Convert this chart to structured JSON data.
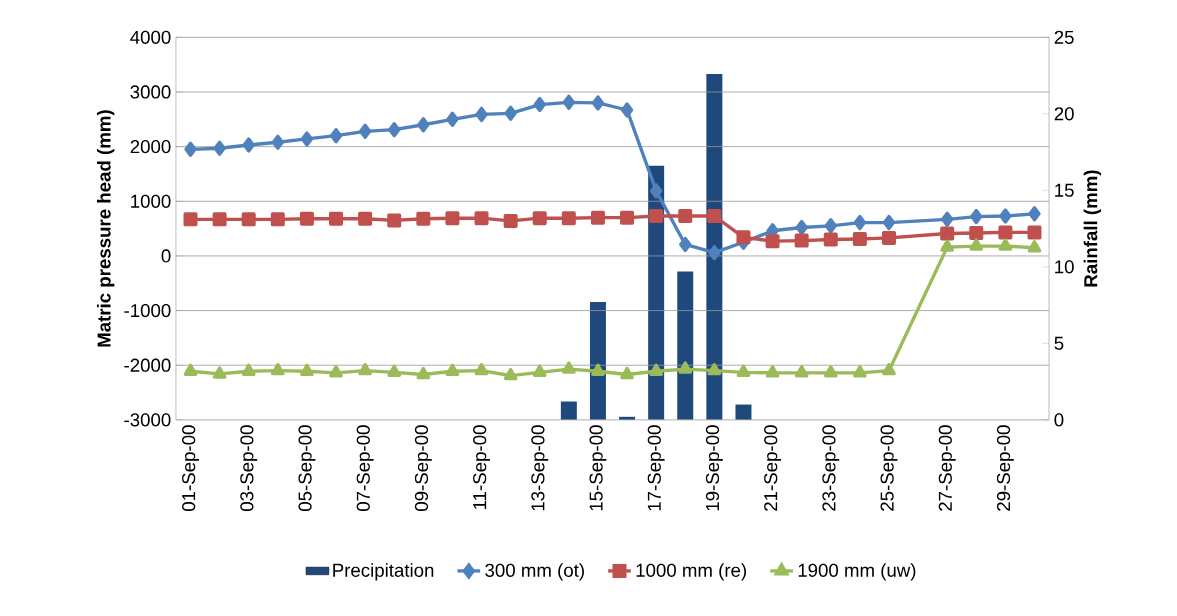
{
  "chart_data": {
    "type": "line",
    "categories": [
      "01-Sep-00",
      null,
      "03-Sep-00",
      null,
      "05-Sep-00",
      null,
      "07-Sep-00",
      null,
      "09-Sep-00",
      null,
      "11-Sep-00",
      null,
      "13-Sep-00",
      null,
      "15-Sep-00",
      null,
      "17-Sep-00",
      null,
      "19-Sep-00",
      null,
      "21-Sep-00",
      null,
      "23-Sep-00",
      null,
      "25-Sep-00",
      null,
      "27-Sep-00",
      null,
      "29-Sep-00",
      null
    ],
    "ylabel": "Matric pressure head (mm)",
    "y2label": "Rainfall (mm)",
    "ylim": [
      -3000,
      4000
    ],
    "yticks": [
      -3000,
      -2000,
      -1000,
      0,
      1000,
      2000,
      3000,
      4000
    ],
    "y2lim": [
      0,
      25
    ],
    "y2ticks": [
      0,
      5,
      10,
      15,
      20,
      25
    ],
    "grid": "y",
    "legend": "bottom",
    "series": [
      {
        "name": "Precipitation",
        "type": "bar",
        "axis": "y2",
        "color": "#1f497d",
        "values": [
          0,
          0,
          0,
          0,
          0,
          0,
          0,
          0,
          0,
          0,
          0,
          0,
          0,
          1.2,
          7.7,
          0.2,
          16.6,
          9.7,
          22.6,
          1.0,
          0,
          0,
          0,
          0,
          0,
          null,
          0,
          0,
          0,
          0
        ]
      },
      {
        "name": "300 mm (ot)",
        "marker": "diamond",
        "color": "#4f81bd",
        "values": [
          1950,
          1970,
          2030,
          2080,
          2140,
          2200,
          2280,
          2310,
          2400,
          2500,
          2590,
          2610,
          2770,
          2810,
          2800,
          2670,
          1190,
          210,
          60,
          250,
          460,
          520,
          550,
          610,
          610,
          null,
          670,
          720,
          730,
          770
        ]
      },
      {
        "name": "1000 mm (re)",
        "marker": "square",
        "color": "#c0504d",
        "values": [
          670,
          670,
          670,
          670,
          680,
          680,
          680,
          650,
          680,
          690,
          690,
          640,
          690,
          690,
          700,
          700,
          730,
          730,
          730,
          340,
          270,
          280,
          300,
          310,
          330,
          null,
          410,
          420,
          430,
          430
        ]
      },
      {
        "name": "1900 mm (uw)",
        "marker": "triangle",
        "color": "#9bbb59",
        "values": [
          -2110,
          -2160,
          -2110,
          -2100,
          -2110,
          -2140,
          -2100,
          -2130,
          -2170,
          -2110,
          -2100,
          -2190,
          -2130,
          -2070,
          -2110,
          -2170,
          -2110,
          -2070,
          -2100,
          -2130,
          -2140,
          -2140,
          -2140,
          -2140,
          -2100,
          null,
          160,
          180,
          180,
          150
        ]
      }
    ]
  }
}
